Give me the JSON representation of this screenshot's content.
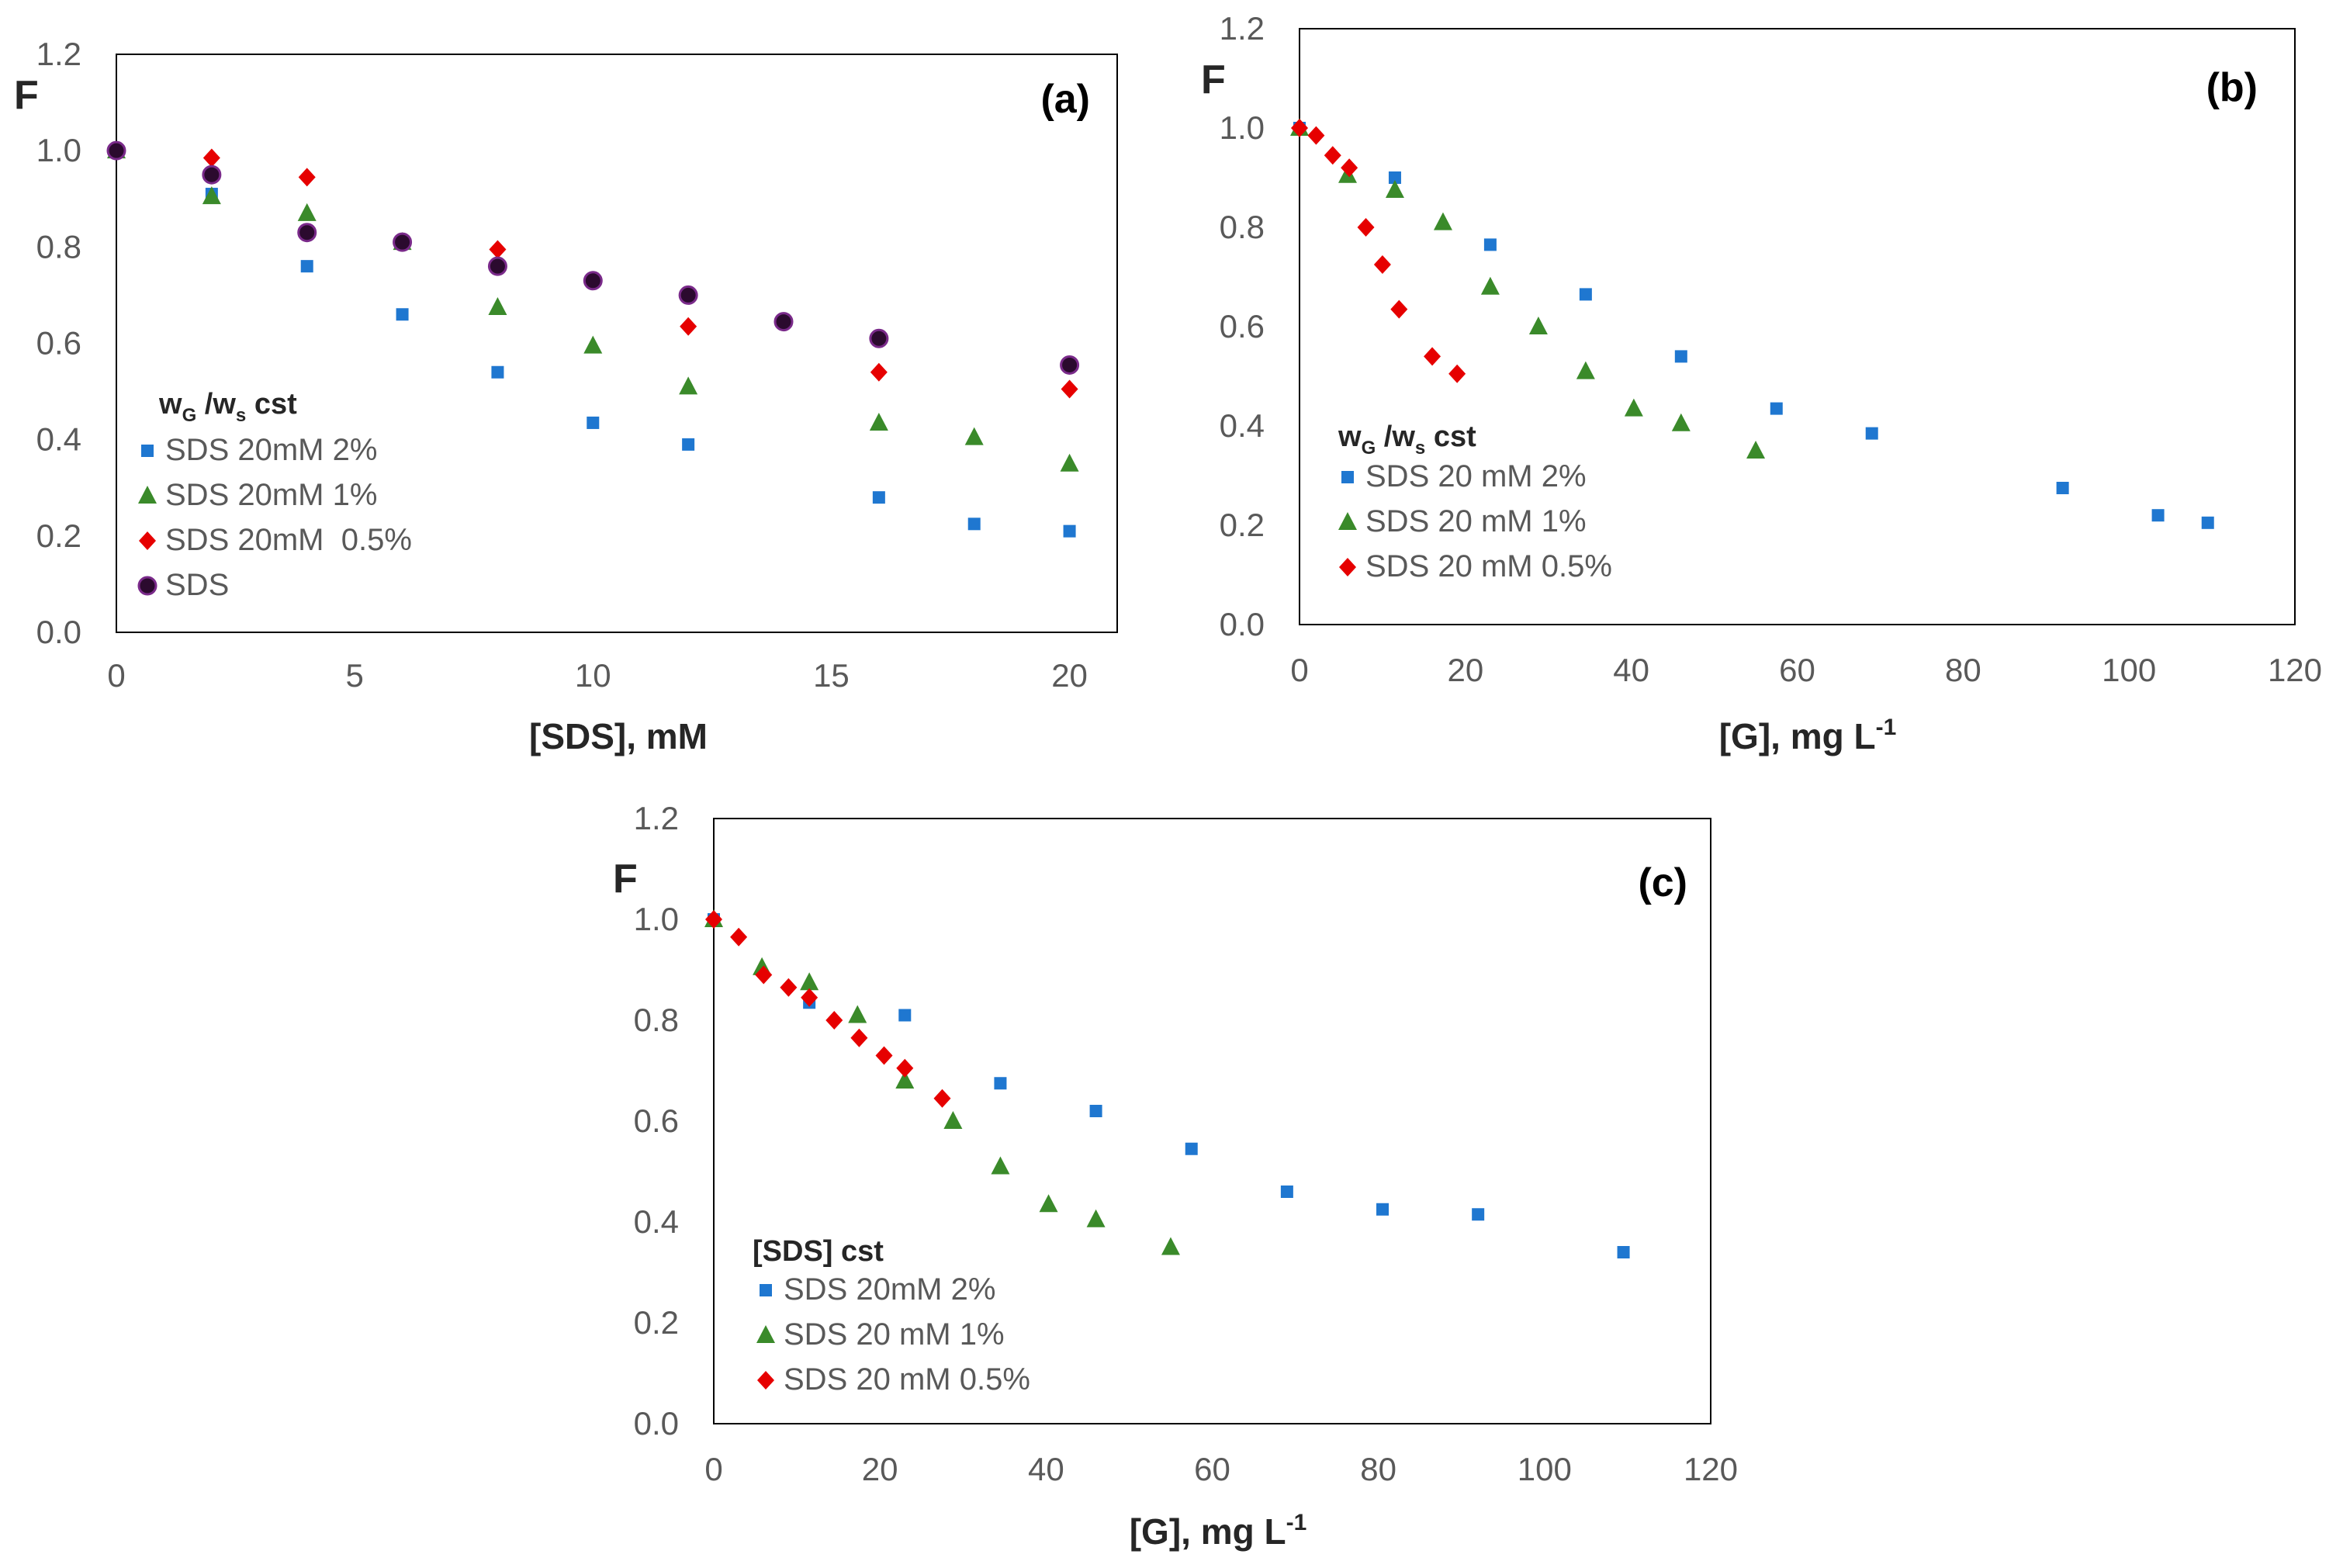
{
  "colors": {
    "s2": "#1f77d0",
    "s1": "#3a8a2a",
    "s05": "#e60000",
    "sds_fill": "#2b0a2e",
    "sds_edge": "#7a2a8a"
  },
  "chart_data": [
    {
      "type": "scatter",
      "panel": "(a)",
      "ylabel": "F",
      "xlabel": "[SDS], mM",
      "xlim": [
        0,
        21
      ],
      "ylim": [
        0,
        1.2
      ],
      "xticks": [
        "0",
        "5",
        "10",
        "15",
        "20"
      ],
      "yticks": [
        "0.0",
        "0.2",
        "0.4",
        "0.6",
        "0.8",
        "1.0",
        "1.2"
      ],
      "legend": {
        "title_main": "w",
        "title_sub1": "G",
        "title_mid": " /w",
        "title_sub2": "s",
        "title_end": "  cst",
        "position": "left"
      },
      "series": [
        {
          "name": "SDS 20mM 2%",
          "marker": "square",
          "color_key": "s2",
          "x": [
            0,
            2,
            4,
            6,
            8,
            10,
            12,
            16,
            18,
            20
          ],
          "y": [
            1.0,
            0.91,
            0.76,
            0.66,
            0.54,
            0.435,
            0.39,
            0.28,
            0.225,
            0.21
          ]
        },
        {
          "name": "SDS 20mM 1%",
          "marker": "triangle",
          "color_key": "s1",
          "x": [
            0,
            2,
            4,
            6,
            8,
            10,
            12,
            16,
            18,
            20
          ],
          "y": [
            1.0,
            0.905,
            0.87,
            0.81,
            0.675,
            0.595,
            0.51,
            0.435,
            0.405,
            0.35
          ]
        },
        {
          "name": "SDS 20mM  0.5%",
          "marker": "diamond",
          "color_key": "s05",
          "x": [
            0,
            2,
            4,
            6,
            8,
            10,
            12,
            16,
            20
          ],
          "y": [
            1.0,
            0.985,
            0.945,
            0.81,
            0.795,
            0.73,
            0.635,
            0.54,
            0.505
          ]
        },
        {
          "name": "SDS",
          "marker": "circle",
          "color_key": "sds_fill",
          "x": [
            0,
            2,
            4,
            6,
            8,
            10,
            12,
            14,
            16,
            20
          ],
          "y": [
            1.0,
            0.95,
            0.83,
            0.81,
            0.76,
            0.73,
            0.7,
            0.645,
            0.61,
            0.555
          ]
        }
      ]
    },
    {
      "type": "scatter",
      "panel": "(b)",
      "ylabel": "F",
      "xlabel_main": "[G], mg L",
      "xlabel_sup": "-1",
      "xlim": [
        0,
        120
      ],
      "ylim": [
        0,
        1.2
      ],
      "xticks": [
        "0",
        "20",
        "40",
        "60",
        "80",
        "100",
        "120"
      ],
      "yticks": [
        "0.0",
        "0.2",
        "0.4",
        "0.6",
        "0.8",
        "1.0",
        "1.2"
      ],
      "legend": {
        "title_main": "w",
        "title_sub1": "G",
        "title_mid": " /w",
        "title_sub2": "s",
        "title_end": "  cst",
        "position": "left"
      },
      "series": [
        {
          "name": "SDS 20 mM 2%",
          "marker": "square",
          "color_key": "s2",
          "x": [
            0,
            11.5,
            23,
            34.5,
            46,
            57.5,
            69,
            92,
            103.5,
            109.5
          ],
          "y": [
            1.0,
            0.9,
            0.765,
            0.665,
            0.54,
            0.435,
            0.385,
            0.275,
            0.22,
            0.205
          ]
        },
        {
          "name": "SDS 20 mM 1%",
          "marker": "triangle",
          "color_key": "s1",
          "x": [
            0,
            5.8,
            11.5,
            17.3,
            23,
            28.8,
            34.5,
            40.3,
            46,
            55
          ],
          "y": [
            1.0,
            0.905,
            0.875,
            0.81,
            0.68,
            0.6,
            0.51,
            0.435,
            0.405,
            0.35
          ]
        },
        {
          "name": "SDS 20 mM 0.5%",
          "marker": "diamond",
          "color_key": "s05",
          "x": [
            0,
            2,
            4,
            6,
            8,
            10,
            12,
            16,
            19
          ],
          "y": [
            1.0,
            0.985,
            0.945,
            0.92,
            0.8,
            0.725,
            0.635,
            0.54,
            0.505
          ]
        }
      ]
    },
    {
      "type": "scatter",
      "panel": "(c)",
      "ylabel": "F",
      "xlabel_main": "[G], mg L",
      "xlabel_sup": "-1",
      "xlim": [
        0,
        120
      ],
      "ylim": [
        0,
        1.2
      ],
      "xticks": [
        "0",
        "20",
        "40",
        "60",
        "80",
        "100",
        "120"
      ],
      "yticks": [
        "0.0",
        "0.2",
        "0.4",
        "0.6",
        "0.8",
        "1.0",
        "1.2"
      ],
      "legend": {
        "title_plain": "[SDS] cst",
        "position": "left"
      },
      "series": [
        {
          "name": "SDS 20mM 2%",
          "marker": "square",
          "color_key": "s2",
          "x": [
            0,
            11.5,
            23,
            34.5,
            46,
            57.5,
            69,
            80.5,
            92,
            109.5
          ],
          "y": [
            1.0,
            0.835,
            0.81,
            0.675,
            0.62,
            0.545,
            0.46,
            0.425,
            0.415,
            0.34
          ]
        },
        {
          "name": "SDS 20 mM 1%",
          "marker": "triangle",
          "color_key": "s1",
          "x": [
            0,
            5.8,
            11.5,
            17.3,
            23,
            28.8,
            34.5,
            40.3,
            46,
            55
          ],
          "y": [
            1.0,
            0.905,
            0.875,
            0.81,
            0.68,
            0.6,
            0.51,
            0.435,
            0.405,
            0.35
          ]
        },
        {
          "name": "SDS 20 mM 0.5%",
          "marker": "diamond",
          "color_key": "s05",
          "x": [
            0,
            3,
            6,
            9,
            11.5,
            14.5,
            17.5,
            20.5,
            23,
            27.5
          ],
          "y": [
            1.0,
            0.965,
            0.89,
            0.865,
            0.845,
            0.8,
            0.765,
            0.73,
            0.705,
            0.645
          ]
        }
      ]
    }
  ]
}
